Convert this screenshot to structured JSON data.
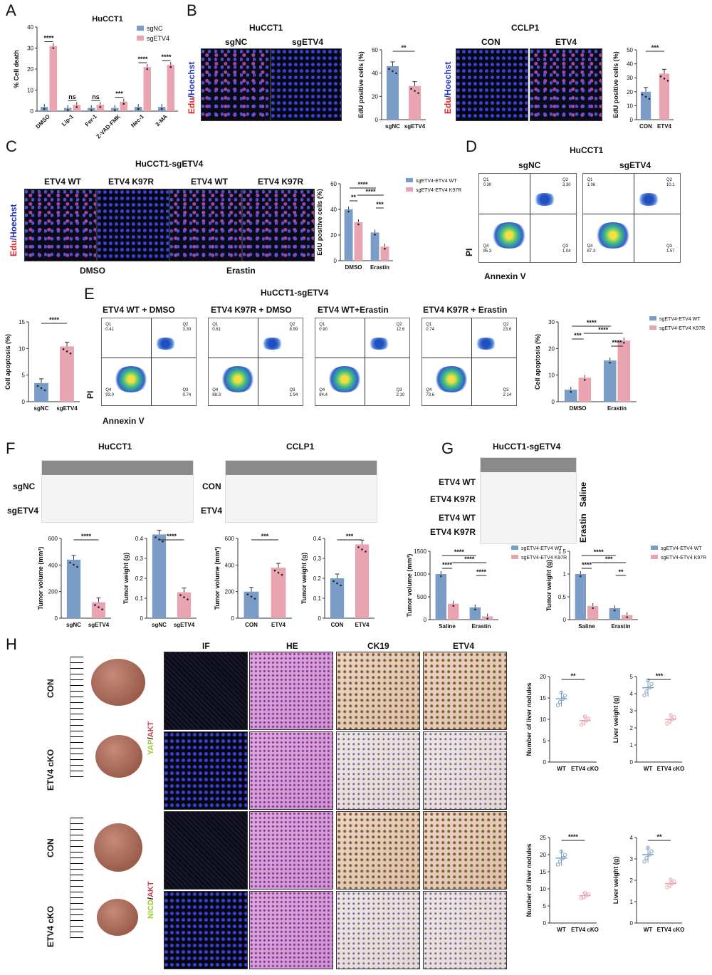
{
  "colors": {
    "blue": "#7A9CC6",
    "pink": "#E8A4B0",
    "sig": "#222222",
    "fig_red": "#e02020",
    "fig_blue": "#2030c0"
  },
  "labels": {
    "A": "A",
    "B": "B",
    "C": "C",
    "D": "D",
    "E": "E",
    "F": "F",
    "G": "G",
    "H": "H",
    "hucct1": "HuCCT1",
    "ccl p1": "CCLP1",
    "hucct1_sgetv4": "HuCCT1-sgETV4",
    "sgnc": "sgNC",
    "sgetv4": "sgETV4",
    "con": "CON",
    "etv4": "ETV4",
    "edu": "Edu",
    "slash": "/",
    "hoechst": "Hoechst",
    "etv4wt": "ETV4 WT",
    "etv4k97r": "ETV4 K97R",
    "dmso": "DMSO",
    "erastin": "Erastin",
    "pi": "PI",
    "annexin": "Annexin V",
    "e_wt_dmso": "ETV4 WT + DMSO",
    "e_k_dmso": "ETV4 K97R + DMSO",
    "e_wt_era": "ETV4 WT+Erastin",
    "e_k_era": "ETV4 K97R + Erastin",
    "saline": "Saline",
    "if": "IF",
    "he": "HE",
    "ck19": "CK19",
    "etv4h": "ETV4",
    "etv4cko": "ETV4 cKO",
    "yap": "YAP",
    "akt": "AKT",
    "nicd": "NICD",
    "q1": "Q1",
    "q2": "Q2",
    "q3": "Q3",
    "q4": "Q4",
    "d_nc_q1": "0.30",
    "d_nc_q2": "3.30",
    "d_nc_q4": "95.3",
    "d_nc_q3": "1.04",
    "d_sg_q1": "1.06",
    "d_sg_q2": "10.1",
    "d_sg_q4": "87.3",
    "d_sg_q3": "1.57",
    "e1_q1": "0.41",
    "e1_q2": "3.30",
    "e1_q4": "93.0",
    "e1_q3": "0.74",
    "e2_q1": "0.81",
    "e2_q2": "8.99",
    "e2_q4": "88.3",
    "e2_q3": "1.94",
    "e3_q1": "0.90",
    "e3_q2": "12.6",
    "e3_q4": "84.4",
    "e3_q3": "2.10",
    "e4_q1": "0.74",
    "e4_q2": "23.6",
    "e4_q4": "73.6",
    "e4_q3": "2.14"
  },
  "chart_data": [
    {
      "id": "A",
      "type": "bar",
      "title": "HuCCT1",
      "ylabel": "% Cell death",
      "ylim": [
        0,
        40
      ],
      "yticks": [
        0,
        10,
        20,
        30,
        40
      ],
      "categories": [
        "DMSO",
        "Lip-1",
        "Fer-1",
        "Z-VAD-FMK",
        "Nec-1",
        "3-MA"
      ],
      "series": [
        {
          "name": "sgNC",
          "values": [
            2,
            1.5,
            1.5,
            1.5,
            2,
            2
          ]
        },
        {
          "name": "sgETV4",
          "values": [
            31,
            3,
            3,
            4.5,
            21,
            22
          ]
        }
      ],
      "sig": [
        "****",
        "ns",
        "ns",
        "***",
        "****",
        "****"
      ],
      "legend": "top-right"
    },
    {
      "id": "B1",
      "type": "bar",
      "ylabel": "EdU positive cells (%)",
      "ylim": [
        0,
        60
      ],
      "yticks": [
        0,
        20,
        40,
        60
      ],
      "categories": [
        "sgNC",
        "sgETV4"
      ],
      "values": [
        46,
        29
      ],
      "sig": [
        "**"
      ]
    },
    {
      "id": "B2",
      "type": "bar",
      "ylabel": "EdU positive cells (%)",
      "ylim": [
        0,
        50
      ],
      "yticks": [
        0,
        10,
        20,
        30,
        40,
        50
      ],
      "categories": [
        "CON",
        "ETV4"
      ],
      "values": [
        20,
        33
      ],
      "sig": [
        "***"
      ]
    },
    {
      "id": "C",
      "type": "bar",
      "ylabel": "EdU positive cells (%)",
      "ylim": [
        0,
        60
      ],
      "yticks": [
        0,
        20,
        40,
        60
      ],
      "categories": [
        "DMSO",
        "Erastin"
      ],
      "series": [
        {
          "name": "sgETV4-ETV4 WT",
          "values": [
            40,
            22
          ]
        },
        {
          "name": "sgETV4-ETV4 K97R",
          "values": [
            30,
            11
          ]
        }
      ],
      "sig": [
        "**",
        "****",
        "****",
        "***"
      ],
      "legend": "right"
    },
    {
      "id": "D2",
      "type": "bar",
      "ylabel": "Cell apoptosis (%)",
      "ylim": [
        0,
        15
      ],
      "yticks": [
        0,
        5,
        10,
        15
      ],
      "categories": [
        "sgNC",
        "sgETV4"
      ],
      "values": [
        3.5,
        10.4
      ],
      "sig": [
        "****"
      ]
    },
    {
      "id": "E2",
      "type": "bar",
      "ylabel": "Cell apoptosis (%)",
      "ylim": [
        0,
        30
      ],
      "yticks": [
        0,
        10,
        20,
        30
      ],
      "categories": [
        "DMSO",
        "Erastin"
      ],
      "series": [
        {
          "name": "sgETV4-ETV4 WT",
          "values": [
            4.5,
            15.5
          ]
        },
        {
          "name": "sgETV4-ETV4 K97R",
          "values": [
            9,
            23
          ]
        }
      ],
      "sig": [
        "***",
        "****",
        "****",
        "****"
      ],
      "legend": "right"
    },
    {
      "id": "F1",
      "type": "bar",
      "ylabel": "Tumor volume (mm³)",
      "ylim": [
        0,
        600
      ],
      "yticks": [
        0,
        200,
        400,
        600
      ],
      "categories": [
        "sgNC",
        "sgETV4"
      ],
      "values": [
        440,
        120
      ],
      "sig": [
        "****"
      ]
    },
    {
      "id": "F2",
      "type": "bar",
      "ylabel": "Tumor weight (g)",
      "ylim": [
        0,
        0.4
      ],
      "yticks": [
        0.0,
        0.1,
        0.2,
        0.3,
        0.4
      ],
      "categories": [
        "sgNC",
        "sgETV4"
      ],
      "values": [
        0.42,
        0.13
      ],
      "sig": [
        "****"
      ]
    },
    {
      "id": "F3",
      "type": "bar",
      "ylabel": "Tumor volume (mm³)",
      "ylim": [
        0,
        600
      ],
      "yticks": [
        0,
        200,
        400,
        600
      ],
      "categories": [
        "CON",
        "ETV4"
      ],
      "values": [
        200,
        380
      ],
      "sig": [
        "***"
      ]
    },
    {
      "id": "F4",
      "type": "bar",
      "ylabel": "Tumor weight (g)",
      "ylim": [
        0,
        0.4
      ],
      "yticks": [
        0.0,
        0.1,
        0.2,
        0.3,
        0.4
      ],
      "categories": [
        "CON",
        "ETV4"
      ],
      "values": [
        0.2,
        0.37
      ],
      "sig": [
        "***"
      ]
    },
    {
      "id": "G1",
      "type": "bar",
      "ylabel": "Tumor volume (mm³)",
      "ylim": [
        0,
        1500
      ],
      "yticks": [
        0,
        500,
        1000,
        1500
      ],
      "categories": [
        "Saline",
        "Erastin"
      ],
      "series": [
        {
          "name": "sgETV4-ETV4 WT",
          "values": [
            1000,
            270
          ]
        },
        {
          "name": "sgETV4-ETV4 K97R",
          "values": [
            350,
            70
          ]
        }
      ],
      "sig": [
        "****",
        "****",
        "****",
        "****"
      ],
      "legend": "right"
    },
    {
      "id": "G2",
      "type": "bar",
      "ylabel": "Tumor weight (g)",
      "ylim": [
        0,
        1.5
      ],
      "yticks": [
        0.0,
        0.5,
        1.0,
        1.5
      ],
      "categories": [
        "Saline",
        "Erastin"
      ],
      "series": [
        {
          "name": "sgETV4-ETV4 WT",
          "values": [
            1.0,
            0.25
          ]
        },
        {
          "name": "sgETV4-ETV4 K97R",
          "values": [
            0.3,
            0.1
          ]
        }
      ],
      "sig": [
        "****",
        "****",
        "***",
        "**"
      ],
      "legend": "right"
    },
    {
      "id": "H1",
      "type": "scatter",
      "ylabel": "Number of liver nodules",
      "ylim": [
        0,
        20
      ],
      "yticks": [
        0,
        5,
        10,
        15,
        20
      ],
      "categories": [
        "WT",
        "ETV4 cKO"
      ],
      "values": [
        14.8,
        9.7
      ],
      "sig": [
        "**"
      ]
    },
    {
      "id": "H2",
      "type": "scatter",
      "ylabel": "Liver weight (g)",
      "ylim": [
        0,
        5
      ],
      "yticks": [
        0,
        1,
        2,
        3,
        4,
        5
      ],
      "categories": [
        "WT",
        "ETV4 cKO"
      ],
      "values": [
        4.35,
        2.5
      ],
      "sig": [
        "***"
      ]
    },
    {
      "id": "H3",
      "type": "scatter",
      "ylabel": "Number of liver nodules",
      "ylim": [
        0,
        25
      ],
      "yticks": [
        0,
        5,
        10,
        15,
        20,
        25
      ],
      "categories": [
        "WT",
        "ETV4 cKO"
      ],
      "values": [
        19,
        8
      ],
      "sig": [
        "****"
      ]
    },
    {
      "id": "H4",
      "type": "scatter",
      "ylabel": "Liver weight (g)",
      "ylim": [
        0,
        4
      ],
      "yticks": [
        0,
        1,
        2,
        3,
        4
      ],
      "categories": [
        "WT",
        "ETV4 cKO"
      ],
      "values": [
        3.2,
        1.85
      ],
      "sig": [
        "**"
      ]
    }
  ]
}
